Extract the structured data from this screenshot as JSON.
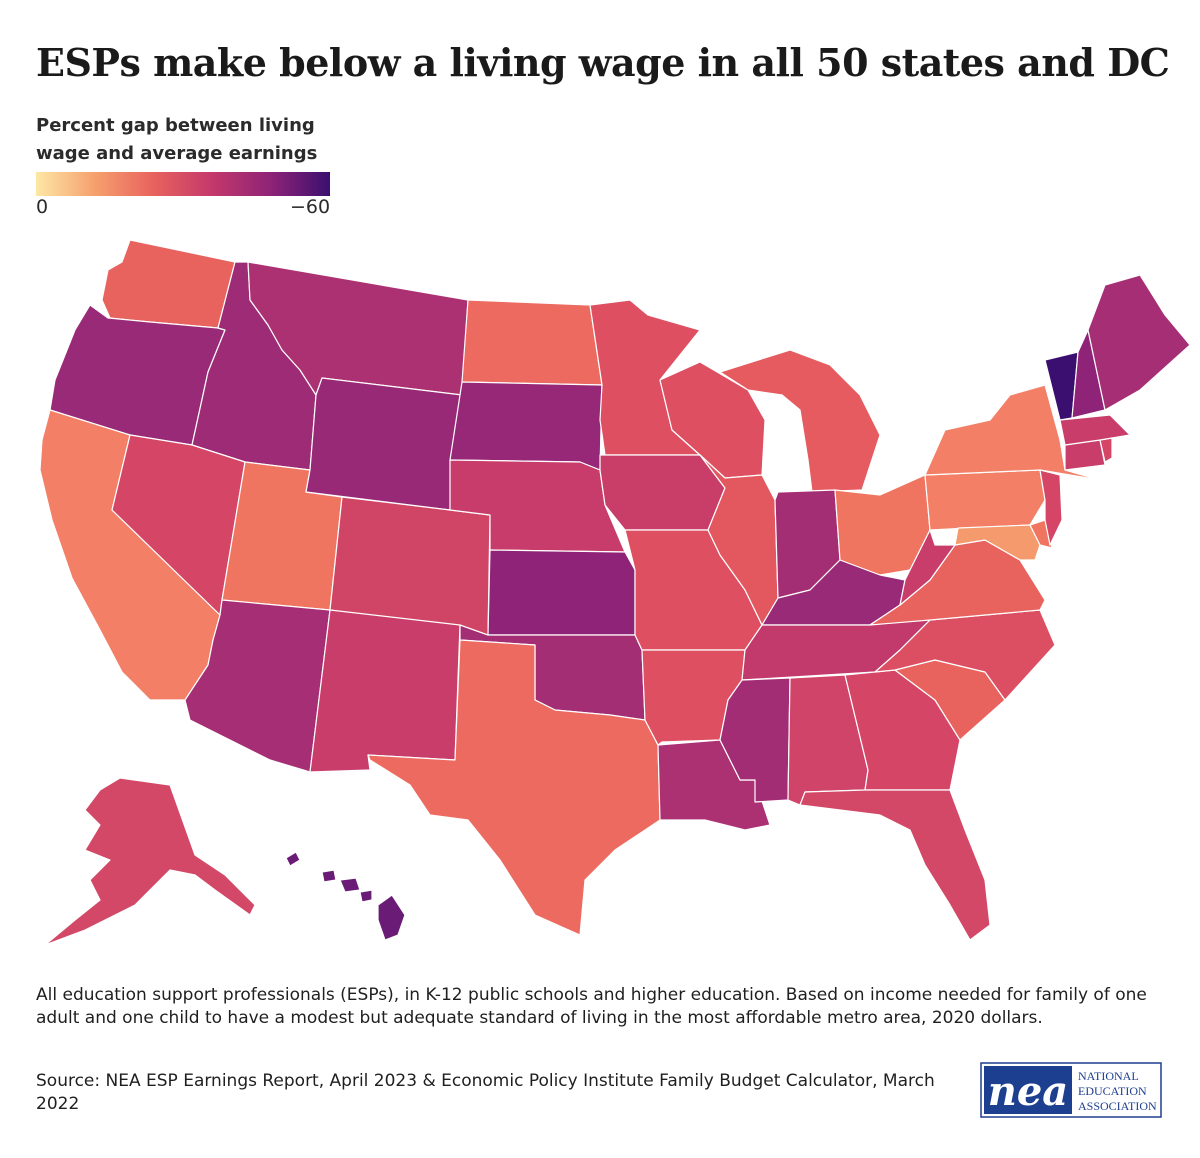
{
  "title": "ESPs make below a living wage in all 50 states and DC",
  "legend": {
    "title_line1": "Percent gap between living",
    "title_line2": "wage and average earnings",
    "min_label": "0",
    "max_label": "−60",
    "colors": [
      "#fde7a5",
      "#f6a06e",
      "#e8625e",
      "#c3386b",
      "#8e2377",
      "#3b0f6f"
    ]
  },
  "note": "All education support professionals (ESPs), in K-12 public schools and higher education. Based on income needed for family of one adult and one child to have a modest but adequate standard of living in the most affordable metro area, 2020 dollars.",
  "source": "Source: NEA ESP Earnings Report, April 2023 & Economic Policy Institute Family Budget Calculator, March 2022",
  "logo": {
    "mark": "nea",
    "line1": "NATIONAL",
    "line2": "EDUCATION",
    "line3": "ASSOCIATION"
  },
  "map_data": {
    "type": "choropleth",
    "value_label": "Percent gap between living wage and average earnings",
    "scale_min": 0,
    "scale_max": -60,
    "states": [
      {
        "id": "WA",
        "color": "#e8625e"
      },
      {
        "id": "OR",
        "color": "#982a77"
      },
      {
        "id": "CA",
        "color": "#f27f66"
      },
      {
        "id": "ID",
        "color": "#9e2b75"
      },
      {
        "id": "NV",
        "color": "#d44566"
      },
      {
        "id": "UT",
        "color": "#f07561"
      },
      {
        "id": "AZ",
        "color": "#a52e74"
      },
      {
        "id": "MT",
        "color": "#ac3172"
      },
      {
        "id": "WY",
        "color": "#972977"
      },
      {
        "id": "CO",
        "color": "#d04566"
      },
      {
        "id": "NM",
        "color": "#c83d69"
      },
      {
        "id": "ND",
        "color": "#ec6a5f"
      },
      {
        "id": "SD",
        "color": "#962877"
      },
      {
        "id": "NE",
        "color": "#c73c6a"
      },
      {
        "id": "KS",
        "color": "#8e2377"
      },
      {
        "id": "OK",
        "color": "#a42e74"
      },
      {
        "id": "TX",
        "color": "#ec6a5f"
      },
      {
        "id": "MN",
        "color": "#dd4f61"
      },
      {
        "id": "IA",
        "color": "#c93e69"
      },
      {
        "id": "MO",
        "color": "#dd4f61"
      },
      {
        "id": "AR",
        "color": "#dd4f61"
      },
      {
        "id": "LA",
        "color": "#ab3173"
      },
      {
        "id": "WI",
        "color": "#dd4f61"
      },
      {
        "id": "IL",
        "color": "#e3575f"
      },
      {
        "id": "MI",
        "color": "#e65b5f"
      },
      {
        "id": "IN",
        "color": "#a42e74"
      },
      {
        "id": "OH",
        "color": "#f07561"
      },
      {
        "id": "KY",
        "color": "#982a77"
      },
      {
        "id": "TN",
        "color": "#c23a6b"
      },
      {
        "id": "MS",
        "color": "#a32d74"
      },
      {
        "id": "AL",
        "color": "#cf4468"
      },
      {
        "id": "GA",
        "color": "#d44566"
      },
      {
        "id": "FL",
        "color": "#d24866"
      },
      {
        "id": "SC",
        "color": "#e8625e"
      },
      {
        "id": "NC",
        "color": "#dc4f62"
      },
      {
        "id": "VA",
        "color": "#e8625e"
      },
      {
        "id": "WV",
        "color": "#c83d69"
      },
      {
        "id": "PA",
        "color": "#f27f66"
      },
      {
        "id": "NY",
        "color": "#f27f66"
      },
      {
        "id": "MD",
        "color": "#f59a6c"
      },
      {
        "id": "DE",
        "color": "#f07561"
      },
      {
        "id": "NJ",
        "color": "#d44566"
      },
      {
        "id": "CT",
        "color": "#c83d69"
      },
      {
        "id": "RI",
        "color": "#d44566"
      },
      {
        "id": "MA",
        "color": "#c83d69"
      },
      {
        "id": "VT",
        "color": "#3b0f6f"
      },
      {
        "id": "NH",
        "color": "#8e2377"
      },
      {
        "id": "ME",
        "color": "#a52e74"
      },
      {
        "id": "AK",
        "color": "#d24866"
      },
      {
        "id": "HI",
        "color": "#6a1b75"
      }
    ]
  }
}
